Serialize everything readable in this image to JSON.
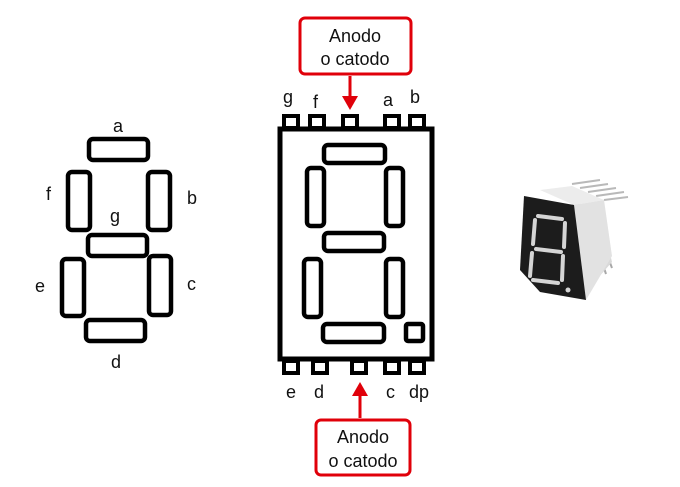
{
  "left_diagram": {
    "segment_labels": {
      "a": "a",
      "b": "b",
      "c": "c",
      "d": "d",
      "e": "e",
      "f": "f",
      "g": "g"
    }
  },
  "center_diagram": {
    "top_pins": [
      "g",
      "f",
      "a",
      "b"
    ],
    "bottom_pins": [
      "e",
      "d",
      "c",
      "dp"
    ],
    "top_callout": {
      "line1": "Anodo",
      "line2": "o catodo"
    },
    "bottom_callout": {
      "line1": "Anodo",
      "line2": "o catodo"
    }
  },
  "colors": {
    "outline": "#000000",
    "callout_border": "#e0000a",
    "arrow": "#e0000a",
    "module_body": "#e9e9e9",
    "module_face": "#1c1c1c",
    "segment_on": "#d8d8d8"
  },
  "photo": {
    "icon": "seven-segment-display-photo"
  }
}
